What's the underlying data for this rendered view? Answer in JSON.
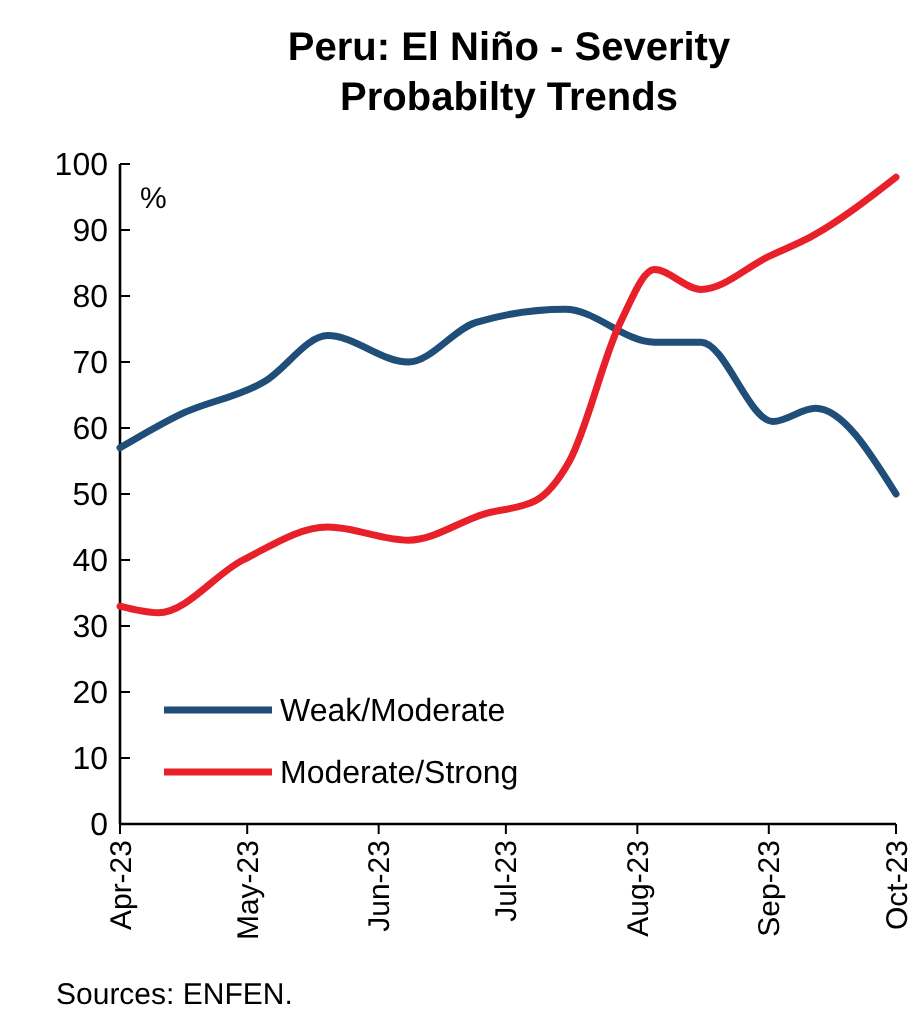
{
  "chart_data": {
    "type": "line",
    "title": "Peru: El Niño - Severity Probabilty Trends",
    "ylabel": "%",
    "xlim": [
      "2023-04-01",
      "2023-10-01"
    ],
    "xticks": [
      {
        "value": "2023-04-01",
        "label": "Apr-23"
      },
      {
        "value": "2023-05-01",
        "label": "May-23"
      },
      {
        "value": "2023-06-01",
        "label": "Jun-23"
      },
      {
        "value": "2023-07-01",
        "label": "Jul-23"
      },
      {
        "value": "2023-08-01",
        "label": "Aug-23"
      },
      {
        "value": "2023-09-01",
        "label": "Sep-23"
      },
      {
        "value": "2023-10-01",
        "label": "Oct-23"
      }
    ],
    "ylim": [
      0,
      100
    ],
    "yticks": [
      0,
      10,
      20,
      30,
      40,
      50,
      60,
      70,
      80,
      90,
      100
    ],
    "grid": false,
    "legend": "bottom left",
    "line_style": "solid",
    "series": [
      {
        "name": "Weak/Moderate",
        "color": "#1f4e79",
        "x": [
          "2023-04-01",
          "2023-04-15",
          "2023-05-05",
          "2023-05-20",
          "2023-06-08",
          "2023-06-24",
          "2023-07-15",
          "2023-08-05",
          "2023-08-16",
          "2023-09-02",
          "2023-09-12",
          "2023-10-01"
        ],
        "values": [
          57,
          62,
          67,
          74,
          70,
          76,
          78,
          73,
          73,
          61,
          63,
          50
        ]
      },
      {
        "name": "Moderate/Strong",
        "color": "#e8202a",
        "x": [
          "2023-04-01",
          "2023-04-10",
          "2023-04-30",
          "2023-05-20",
          "2023-06-08",
          "2023-06-26",
          "2023-07-08",
          "2023-07-16",
          "2023-07-28",
          "2023-08-05",
          "2023-08-16",
          "2023-09-01",
          "2023-09-11",
          "2023-10-01"
        ],
        "values": [
          33,
          32,
          40,
          45,
          43,
          47,
          49,
          55,
          76,
          84,
          81,
          86,
          89,
          98
        ]
      }
    ],
    "annotations": [
      "Sources: ENFEN."
    ]
  }
}
